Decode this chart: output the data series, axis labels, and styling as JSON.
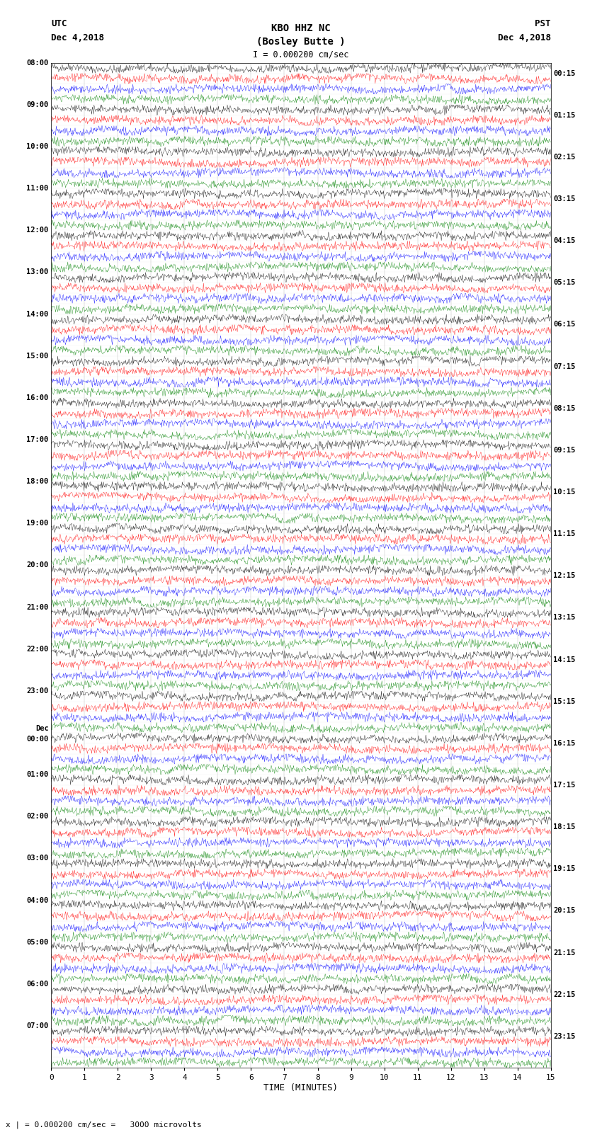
{
  "title_line1": "KBO HHZ NC",
  "title_line2": "(Bosley Butte )",
  "title_line3": "I = 0.000200 cm/sec",
  "left_label_line1": "UTC",
  "left_label_line2": "Dec 4,2018",
  "right_label_line1": "PST",
  "right_label_line2": "Dec 4,2018",
  "xlabel": "TIME (MINUTES)",
  "bottom_label": "x | = 0.000200 cm/sec =   3000 microvolts",
  "bg_color": "#ffffff",
  "trace_colors": [
    "#000000",
    "#ff0000",
    "#0000ff",
    "#008000"
  ],
  "num_traces_per_hour": 4,
  "minutes_per_trace": 15,
  "x_ticks": [
    0,
    1,
    2,
    3,
    4,
    5,
    6,
    7,
    8,
    9,
    10,
    11,
    12,
    13,
    14,
    15
  ],
  "left_times_utc": [
    "08:00",
    "09:00",
    "10:00",
    "11:00",
    "12:00",
    "13:00",
    "14:00",
    "15:00",
    "16:00",
    "17:00",
    "18:00",
    "19:00",
    "20:00",
    "21:00",
    "22:00",
    "23:00",
    "Dec\n00:00",
    "01:00",
    "02:00",
    "03:00",
    "04:00",
    "05:00",
    "06:00",
    "07:00"
  ],
  "right_times_pst": [
    "00:15",
    "01:15",
    "02:15",
    "03:15",
    "04:15",
    "05:15",
    "06:15",
    "07:15",
    "08:15",
    "09:15",
    "10:15",
    "11:15",
    "12:15",
    "13:15",
    "14:15",
    "15:15",
    "16:15",
    "17:15",
    "18:15",
    "19:15",
    "20:15",
    "21:15",
    "22:15",
    "23:15"
  ],
  "num_hours": 24,
  "seed": 42,
  "amplitude": 0.38,
  "noise_scale": 0.2
}
